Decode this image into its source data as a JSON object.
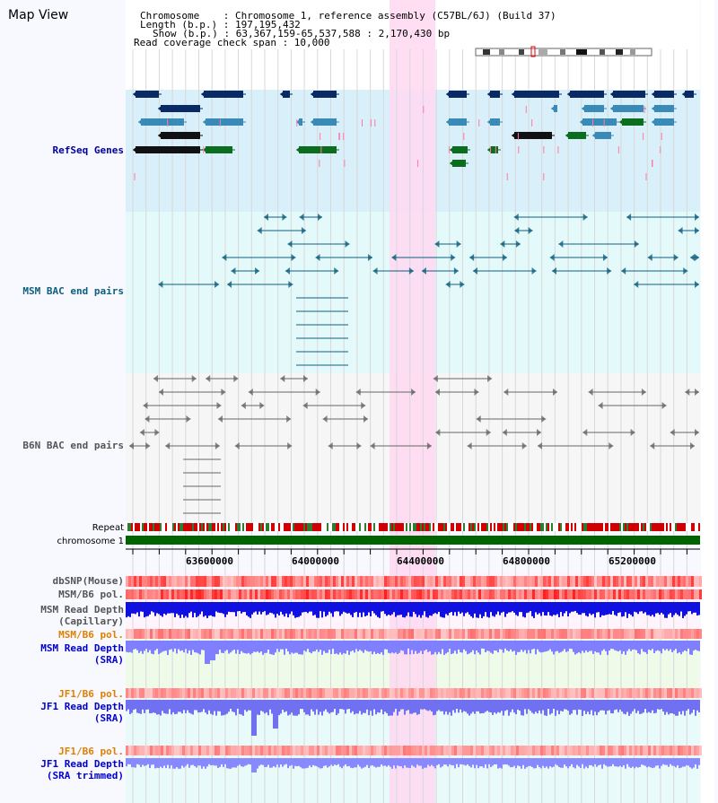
{
  "app": {
    "title": "Map View"
  },
  "info": {
    "chromosome": "Chromosome    : Chromosome 1, reference assembly (C57BL/6J) (Build 37)",
    "length": "Length (b.p.) : 197,195,432",
    "show": "Show (b.p.) : 63,367,159-65,537,588 : 2,170,430 bp",
    "read_span": "Read coverage check span : 10,000"
  },
  "tracks": {
    "refseq": "RefSeq Genes",
    "msm_bac": "MSM BAC end pairs",
    "b6n_bac": "B6N BAC end pairs",
    "repeat": "Repeat",
    "chromosome": "chromosome 1",
    "dbsnp": "dbSNP(Mouse)",
    "msm_b6_pol": "MSM/B6 pol.",
    "msm_depth_cap": "MSM Read Depth\n(Capillary)",
    "msm_b6_pol2": "MSM/B6 pol.",
    "msm_depth_sra": "MSM Read Depth\n(SRA)",
    "jf1_b6_pol": "JF1/B6 pol.",
    "jf1_depth_sra": "JF1 Read Depth\n(SRA)",
    "jf1_b6_pol2": "JF1/B6 pol.",
    "jf1_depth_trim": "JF1 Read Depth\n(SRA trimmed)"
  },
  "axis": {
    "ticks": [
      "63600000",
      "64000000",
      "64400000",
      "64800000",
      "65200000"
    ]
  },
  "colors": {
    "refseq_bg": "#d9f0fa",
    "msm_bg": "#e4fafa",
    "highlight": "#ffd8f2",
    "gene_dark": "#0a2a66",
    "gene_mid": "#3a8ab8",
    "gene_green": "#0a6e1e",
    "msm_line": "#0e5e7e",
    "b6n_line": "#666666",
    "chrom_green": "#006400",
    "label_blue": "#0000a0",
    "label_teal": "#0e5e7e",
    "label_orange": "#e08000"
  }
}
